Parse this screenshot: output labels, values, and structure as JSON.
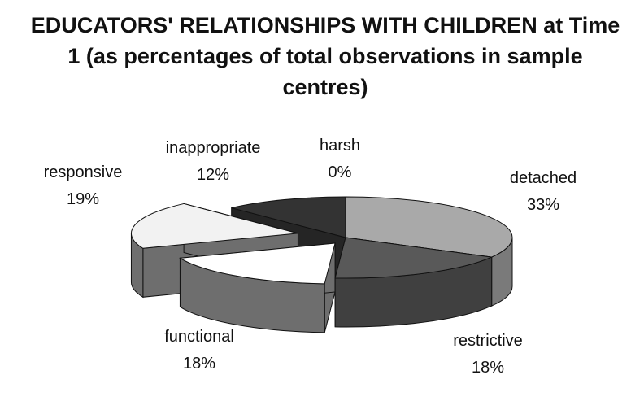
{
  "chart_data": {
    "type": "pie3d",
    "title": "EDUCATORS' RELATIONSHIPS WITH CHILDREN at Time 1 (as percentages of total observations in sample centres)",
    "categories": [
      "detached",
      "restrictive",
      "functional",
      "responsive",
      "inappropriate",
      "harsh"
    ],
    "values": [
      33,
      18,
      18,
      19,
      12,
      0
    ],
    "value_labels": [
      "33%",
      "18%",
      "18%",
      "19%",
      "12%",
      "0%"
    ],
    "colors": [
      "#a9a9a9",
      "#595959",
      "#ffffff",
      "#f2f2f2",
      "#333333",
      "#d0d0d0"
    ]
  }
}
